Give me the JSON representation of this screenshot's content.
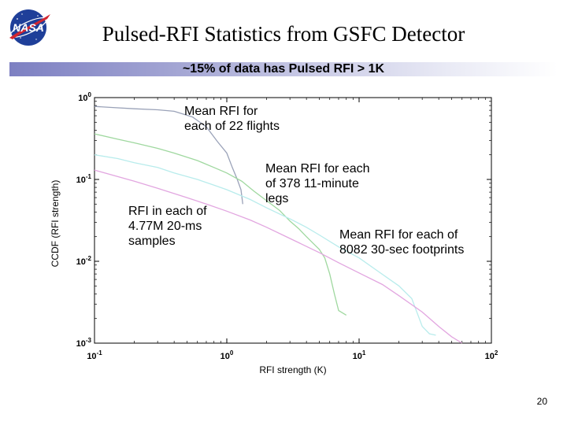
{
  "slide": {
    "title": "Pulsed-RFI Statistics from GSFC Detector",
    "banner": "~15% of data has Pulsed RFI > 1K",
    "page_number": "20",
    "logo_text": "NASA"
  },
  "chart_data": {
    "type": "line",
    "xlabel": "RFI strength (K)",
    "ylabel": "CCDF (RFI strength)",
    "x_scale": "log",
    "y_scale": "log",
    "xlim": [
      0.1,
      100
    ],
    "ylim": [
      0.001,
      1
    ],
    "x_ticks": [
      {
        "value": 0.1,
        "base": "10",
        "exp": "-1"
      },
      {
        "value": 1,
        "base": "10",
        "exp": "0"
      },
      {
        "value": 10,
        "base": "10",
        "exp": "1"
      },
      {
        "value": 100,
        "base": "10",
        "exp": "2"
      }
    ],
    "y_ticks": [
      {
        "value": 1,
        "base": "10",
        "exp": "0"
      },
      {
        "value": 0.1,
        "base": "10",
        "exp": "-1"
      },
      {
        "value": 0.01,
        "base": "10",
        "exp": "-2"
      },
      {
        "value": 0.001,
        "base": "10",
        "exp": "-3"
      }
    ],
    "grid": false,
    "series": [
      {
        "color": "#9aa2b8",
        "points": [
          [
            0.1,
            0.78
          ],
          [
            0.13,
            0.76
          ],
          [
            0.2,
            0.73
          ],
          [
            0.3,
            0.71
          ],
          [
            0.4,
            0.68
          ],
          [
            0.55,
            0.58
          ],
          [
            0.7,
            0.44
          ],
          [
            0.85,
            0.29
          ],
          [
            1.0,
            0.21
          ],
          [
            1.1,
            0.14
          ],
          [
            1.2,
            0.1
          ],
          [
            1.28,
            0.075
          ],
          [
            1.32,
            0.05
          ]
        ]
      },
      {
        "color": "#9fd89f",
        "points": [
          [
            0.1,
            0.36
          ],
          [
            0.15,
            0.31
          ],
          [
            0.2,
            0.28
          ],
          [
            0.3,
            0.24
          ],
          [
            0.4,
            0.21
          ],
          [
            0.6,
            0.17
          ],
          [
            0.8,
            0.14
          ],
          [
            1.0,
            0.12
          ],
          [
            1.3,
            0.095
          ],
          [
            1.6,
            0.072
          ],
          [
            2.0,
            0.055
          ],
          [
            2.5,
            0.042
          ],
          [
            3.0,
            0.031
          ],
          [
            3.5,
            0.025
          ],
          [
            4.0,
            0.02
          ],
          [
            4.6,
            0.016
          ],
          [
            5.0,
            0.014
          ],
          [
            5.5,
            0.011
          ],
          [
            6.0,
            0.007
          ],
          [
            6.5,
            0.004
          ],
          [
            7.0,
            0.0025
          ],
          [
            8.0,
            0.0022
          ]
        ]
      },
      {
        "color": "#b8ecec",
        "points": [
          [
            0.1,
            0.2
          ],
          [
            0.15,
            0.18
          ],
          [
            0.2,
            0.16
          ],
          [
            0.3,
            0.14
          ],
          [
            0.4,
            0.12
          ],
          [
            0.6,
            0.1
          ],
          [
            0.8,
            0.085
          ],
          [
            1.0,
            0.075
          ],
          [
            1.5,
            0.057
          ],
          [
            2.0,
            0.045
          ],
          [
            3.0,
            0.033
          ],
          [
            4.0,
            0.026
          ],
          [
            5.0,
            0.021
          ],
          [
            7.0,
            0.015
          ],
          [
            10.0,
            0.011
          ],
          [
            14.0,
            0.0075
          ],
          [
            20.0,
            0.005
          ],
          [
            25.0,
            0.0035
          ],
          [
            30.0,
            0.0016
          ],
          [
            34.0,
            0.0013
          ],
          [
            38.0,
            0.00125
          ]
        ]
      },
      {
        "color": "#e2a6e0",
        "points": [
          [
            0.1,
            0.13
          ],
          [
            0.2,
            0.095
          ],
          [
            0.3,
            0.078
          ],
          [
            0.5,
            0.06
          ],
          [
            0.7,
            0.05
          ],
          [
            1.0,
            0.041
          ],
          [
            1.5,
            0.032
          ],
          [
            2.0,
            0.026
          ],
          [
            3.0,
            0.019
          ],
          [
            5.0,
            0.0128
          ],
          [
            7.0,
            0.0096
          ],
          [
            10.0,
            0.0072
          ],
          [
            15.0,
            0.0052
          ],
          [
            20.0,
            0.0038
          ],
          [
            30.0,
            0.0024
          ],
          [
            40.0,
            0.0016
          ],
          [
            50.0,
            0.0012
          ],
          [
            60.0,
            0.001
          ]
        ]
      }
    ],
    "annotations": [
      {
        "text": "Mean RFI for\neach of 22 flights"
      },
      {
        "text": "Mean RFI for each\n of 378 11-minute\nlegs"
      },
      {
        "text": "RFI in each of\n4.77M 20-ms\nsamples"
      },
      {
        "text": "Mean RFI for each of\n8082 30-sec footprints"
      }
    ]
  }
}
